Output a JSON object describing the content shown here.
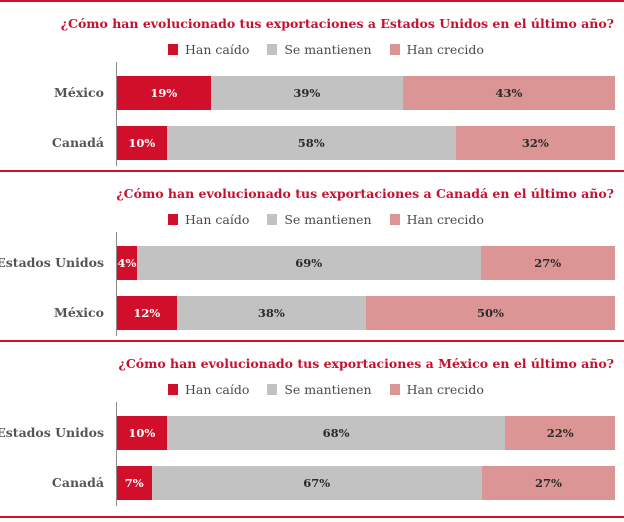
{
  "colors": {
    "fallen": "#d20f2a",
    "same": "#c2c2c2",
    "grown": "#dc9595",
    "rule": "#d20f2a"
  },
  "chart_data": [
    {
      "type": "bar",
      "stacked": true,
      "orientation": "horizontal",
      "title": "¿Cómo han evolucionado tus exportaciones a Estados Unidos en el último año?",
      "categories": [
        "México",
        "Canadá"
      ],
      "series": [
        {
          "name": "Han caído",
          "values": [
            19,
            10
          ]
        },
        {
          "name": "Se mantienen",
          "values": [
            39,
            58
          ]
        },
        {
          "name": "Han crecido",
          "values": [
            43,
            32
          ]
        }
      ],
      "data_labels": [
        [
          "19%",
          "39%",
          "43%"
        ],
        [
          "10%",
          "58%",
          "32%"
        ]
      ],
      "legend_position": "top"
    },
    {
      "type": "bar",
      "stacked": true,
      "orientation": "horizontal",
      "title": "¿Cómo han evolucionado tus exportaciones a Canadá en el último año?",
      "categories": [
        "Estados Unidos",
        "México"
      ],
      "series": [
        {
          "name": "Han caído",
          "values": [
            4,
            12
          ]
        },
        {
          "name": "Se mantienen",
          "values": [
            69,
            38
          ]
        },
        {
          "name": "Han crecido",
          "values": [
            27,
            50
          ]
        }
      ],
      "data_labels": [
        [
          "4%",
          "69%",
          "27%"
        ],
        [
          "12%",
          "38%",
          "50%"
        ]
      ],
      "legend_position": "top"
    },
    {
      "type": "bar",
      "stacked": true,
      "orientation": "horizontal",
      "title": "¿Cómo han evolucionado tus exportaciones a México en el último año?",
      "categories": [
        "Estados Unidos",
        "Canadá"
      ],
      "series": [
        {
          "name": "Han caído",
          "values": [
            10,
            7
          ]
        },
        {
          "name": "Se mantienen",
          "values": [
            68,
            67
          ]
        },
        {
          "name": "Han crecido",
          "values": [
            22,
            27
          ]
        }
      ],
      "data_labels": [
        [
          "10%",
          "68%",
          "22%"
        ],
        [
          "7%",
          "67%",
          "27%"
        ]
      ],
      "legend_position": "top"
    }
  ]
}
